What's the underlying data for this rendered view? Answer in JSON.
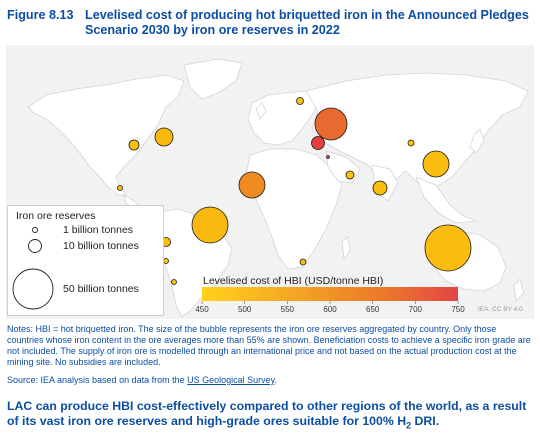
{
  "figure": {
    "number": "Figure 8.13",
    "title_line1": "Levelised cost of producing hot briquetted iron in the Announced Pledges",
    "title_line2": "Scenario 2030 by iron ore reserves in 2022"
  },
  "legend": {
    "title": "Iron ore reserves",
    "items": [
      "1 billion tonnes",
      "10 billion tonnes",
      "50 billion tonnes"
    ]
  },
  "colorbar": {
    "title": "Levelised cost of HBI (USD/tonne HBI)",
    "ticks": [
      "450",
      "500",
      "550",
      "600",
      "650",
      "700",
      "750"
    ],
    "range": [
      450,
      750
    ],
    "colors": [
      "#ffd21a",
      "#f5a623",
      "#ec7a2a",
      "#e14646"
    ]
  },
  "credit": "IEA. CC BY 4.0",
  "map_data": {
    "bubble_areas": [
      {
        "area": "Canada",
        "reserves_bt": 6,
        "cost": 490
      },
      {
        "area": "United States",
        "reserves_bt": 3,
        "cost": 470
      },
      {
        "area": "Mexico",
        "reserves_bt": 1,
        "cost": 470
      },
      {
        "area": "Brazil",
        "reserves_bt": 34,
        "cost": 490
      },
      {
        "area": "Peru",
        "reserves_bt": 2,
        "cost": 480
      },
      {
        "area": "Chile",
        "reserves_bt": 1,
        "cost": 470
      },
      {
        "area": "Argentina",
        "reserves_bt": 1,
        "cost": 470
      },
      {
        "area": "Sweden",
        "reserves_bt": 1,
        "cost": 470
      },
      {
        "area": "Russia",
        "reserves_bt": 25,
        "cost": 655
      },
      {
        "area": "Ukraine",
        "reserves_bt": 6,
        "cost": 730
      },
      {
        "area": "Türkiye",
        "reserves_bt": 0.2,
        "cost": 700
      },
      {
        "area": "Iran",
        "reserves_bt": 2,
        "cost": 470
      },
      {
        "area": "Algeria / North Africa",
        "reserves_bt": 20,
        "cost": 590
      },
      {
        "area": "India",
        "reserves_bt": 5,
        "cost": 480
      },
      {
        "area": "China",
        "reserves_bt": 20,
        "cost": 480
      },
      {
        "area": "Mongolia / Kazakhstan",
        "reserves_bt": 1,
        "cost": 470
      },
      {
        "area": "Australia",
        "reserves_bt": 50,
        "cost": 485
      },
      {
        "area": "South Africa",
        "reserves_bt": 1,
        "cost": 470
      }
    ]
  },
  "notes": {
    "text": "Notes: HBI = hot briquetted iron. The size of the bubble represents the iron ore reserves aggregated by country. Only those countries whose iron content in the ore averages more than 55% are shown. Beneficiation costs to achieve a specific iron grade are not included. The supply of iron ore is modelled through an international price and not based on the actual production cost at the mining site. No subsidies are included.",
    "source_prefix": "Source: IEA analysis based on data from the ",
    "source_link": "US Geological Survey",
    "source_suffix": "."
  },
  "conclusion": {
    "text_pre": "LAC can produce HBI cost-effectively compared to other regions of the world, as a result of its vast iron ore reserves and high-grade ores suitable for 100% H",
    "subscript": "2",
    "text_post": " DRI."
  }
}
